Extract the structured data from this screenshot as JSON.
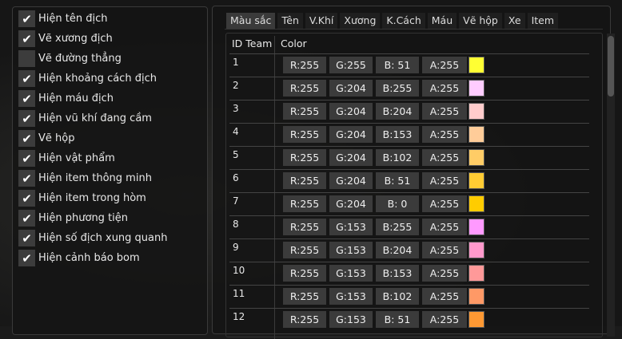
{
  "checkboxes": [
    {
      "label": "Hiện tên địch",
      "checked": true
    },
    {
      "label": "Vẽ xương địch",
      "checked": true
    },
    {
      "label": "Vẽ đường thẳng",
      "checked": false
    },
    {
      "label": "Hiện khoảng cách địch",
      "checked": true
    },
    {
      "label": "Hiện máu địch",
      "checked": true
    },
    {
      "label": "Hiện vũ khí đang cầm",
      "checked": true
    },
    {
      "label": "Vẽ hộp",
      "checked": true
    },
    {
      "label": "Hiện vật phẩm",
      "checked": true
    },
    {
      "label": "Hiện item thông minh",
      "checked": true
    },
    {
      "label": "Hiện item trong hòm",
      "checked": true
    },
    {
      "label": "Hiện phương tiện",
      "checked": true
    },
    {
      "label": "Hiện số địch xung quanh",
      "checked": true
    },
    {
      "label": "Hiện cảnh báo bom",
      "checked": true
    }
  ],
  "tabs": [
    "Màu sắc",
    "Tên",
    "V.Khí",
    "Xương",
    "K.Cách",
    "Máu",
    "Vẽ hộp",
    "Xe",
    "Item"
  ],
  "active_tab": "Màu sắc",
  "table": {
    "headers": [
      "ID Team",
      "Color"
    ],
    "rows": [
      {
        "id": "1",
        "r": "R:255",
        "g": "G:255",
        "b": "B: 51",
        "a": "A:255",
        "color": "#ffff33"
      },
      {
        "id": "2",
        "r": "R:255",
        "g": "G:204",
        "b": "B:255",
        "a": "A:255",
        "color": "#ffccff"
      },
      {
        "id": "3",
        "r": "R:255",
        "g": "G:204",
        "b": "B:204",
        "a": "A:255",
        "color": "#ffcccc"
      },
      {
        "id": "4",
        "r": "R:255",
        "g": "G:204",
        "b": "B:153",
        "a": "A:255",
        "color": "#ffcc99"
      },
      {
        "id": "5",
        "r": "R:255",
        "g": "G:204",
        "b": "B:102",
        "a": "A:255",
        "color": "#ffcc66"
      },
      {
        "id": "6",
        "r": "R:255",
        "g": "G:204",
        "b": "B: 51",
        "a": "A:255",
        "color": "#ffcc33"
      },
      {
        "id": "7",
        "r": "R:255",
        "g": "G:204",
        "b": "B:  0",
        "a": "A:255",
        "color": "#ffcc00"
      },
      {
        "id": "8",
        "r": "R:255",
        "g": "G:153",
        "b": "B:255",
        "a": "A:255",
        "color": "#ff99ff"
      },
      {
        "id": "9",
        "r": "R:255",
        "g": "G:153",
        "b": "B:204",
        "a": "A:255",
        "color": "#ff99cc"
      },
      {
        "id": "10",
        "r": "R:255",
        "g": "G:153",
        "b": "B:153",
        "a": "A:255",
        "color": "#ff9999"
      },
      {
        "id": "11",
        "r": "R:255",
        "g": "G:153",
        "b": "B:102",
        "a": "A:255",
        "color": "#ff9966"
      },
      {
        "id": "12",
        "r": "R:255",
        "g": "G:153",
        "b": "B: 51",
        "a": "A:255",
        "color": "#ff9933"
      }
    ]
  }
}
